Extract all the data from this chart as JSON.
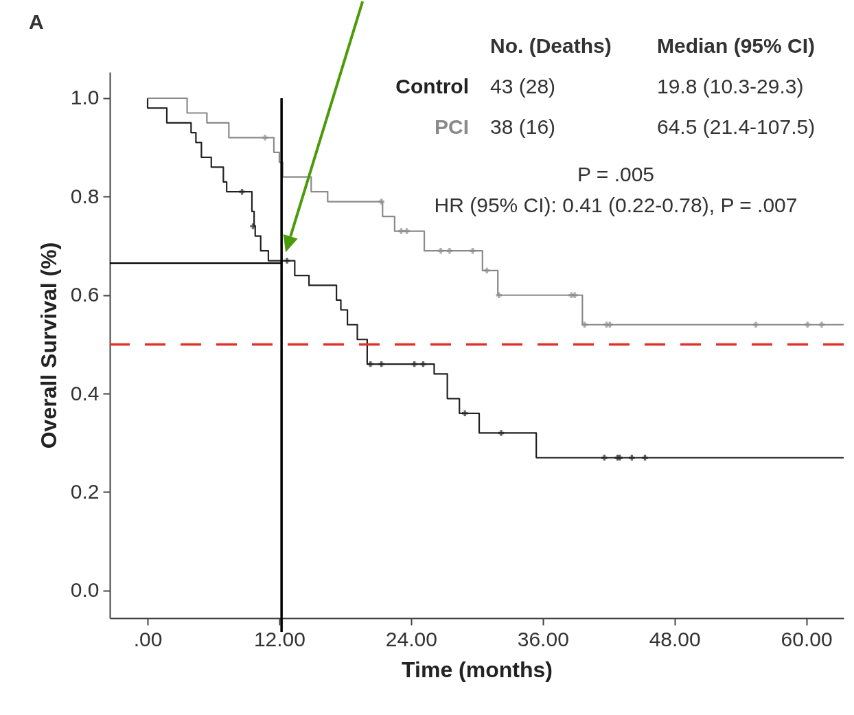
{
  "chart_data": {
    "type": "step",
    "title": "A",
    "xlabel": "Time (months)",
    "ylabel": "Overall Survival (%)",
    "xlim": [
      -3.44,
      63.4
    ],
    "ylim": [
      -0.056,
      1.053
    ],
    "xticks": [
      {
        "value": 0,
        "label": ".00"
      },
      {
        "value": 12,
        "label": "12.00"
      },
      {
        "value": 24,
        "label": "24.00"
      },
      {
        "value": 36,
        "label": "36.00"
      },
      {
        "value": 48,
        "label": "48.00"
      },
      {
        "value": 60,
        "label": "60.00"
      }
    ],
    "yticks": [
      {
        "value": 0,
        "label": "0.0"
      },
      0.2,
      0.4,
      0.6,
      0.8,
      {
        "value": 1,
        "label": "1.0"
      }
    ],
    "grid": false,
    "series": [
      {
        "name": "Control",
        "color": "#222222",
        "x": [
          0,
          0,
          1.75,
          3.96,
          4.4,
          4.9,
          5.8,
          6.9,
          7.2,
          9.5,
          9.7,
          9.8,
          10.3,
          11.0,
          13.4,
          14.7,
          17.2,
          17.6,
          18.2,
          19.1,
          20.0,
          26.1,
          27.3,
          28.4,
          30.2,
          35.4,
          63.4
        ],
        "values": [
          1.0,
          0.98,
          0.95,
          0.93,
          0.91,
          0.88,
          0.86,
          0.83,
          0.81,
          0.77,
          0.74,
          0.72,
          0.69,
          0.67,
          0.64,
          0.62,
          0.59,
          0.57,
          0.54,
          0.51,
          0.46,
          0.44,
          0.39,
          0.36,
          0.32,
          0.27,
          0.27
        ]
      },
      {
        "name": "PCI",
        "color": "#8a8a8a",
        "x": [
          0,
          3.6,
          5.4,
          7.4,
          11.5,
          12.0,
          12.3,
          14.9,
          16.4,
          21.4,
          22.5,
          25.2,
          30.5,
          31.9,
          39.6,
          63.4
        ],
        "values": [
          1.0,
          0.97,
          0.95,
          0.92,
          0.89,
          0.87,
          0.84,
          0.81,
          0.79,
          0.76,
          0.73,
          0.69,
          0.65,
          0.6,
          0.54,
          0.54
        ]
      },
      {
        "type": "scatter",
        "marker": "cross",
        "color": "#222222",
        "x": [
          8.6,
          9.6,
          12.7,
          20.3,
          21.3,
          24.3,
          25.1,
          28.9,
          32.2,
          41.6,
          42.8,
          43.0,
          44.1,
          45.3
        ],
        "values": [
          0.81,
          0.74,
          0.67,
          0.46,
          0.46,
          0.46,
          0.46,
          0.36,
          0.32,
          0.27,
          0.27,
          0.27,
          0.27,
          0.27
        ]
      },
      {
        "type": "scatter",
        "marker": "cross",
        "color": "#8a8a8a",
        "x": [
          10.7,
          21.3,
          23.1,
          23.6,
          26.7,
          27.5,
          29.6,
          30.9,
          32.0,
          38.6,
          38.9,
          39.8,
          41.8,
          42.1,
          55.4,
          60.1,
          61.4
        ],
        "values": [
          0.92,
          0.79,
          0.73,
          0.73,
          0.69,
          0.69,
          0.69,
          0.65,
          0.6,
          0.6,
          0.6,
          0.54,
          0.54,
          0.54,
          0.54,
          0.54,
          0.54
        ]
      },
      {
        "type": "line",
        "color": "#000000",
        "x": [
          -3.44,
          12.2
        ],
        "values": [
          0.665,
          0.665
        ]
      }
    ],
    "ref_lines": [
      {
        "axis": "x",
        "value": 12.2,
        "color": "#000000",
        "line_style": "solid"
      },
      {
        "axis": "y",
        "value": 0.5,
        "color": "#e0302a",
        "line_style": "dashed"
      }
    ],
    "annotations": [
      "No. (Deaths)",
      "Median (95% CI)",
      "43 (28)",
      "19.8 (10.3-29.3)",
      "38 (16)",
      "64.5 (21.4-107.5)",
      "P = .005",
      "HR (95% CI): 0.41 (0.22-0.78), P = .007"
    ]
  }
}
